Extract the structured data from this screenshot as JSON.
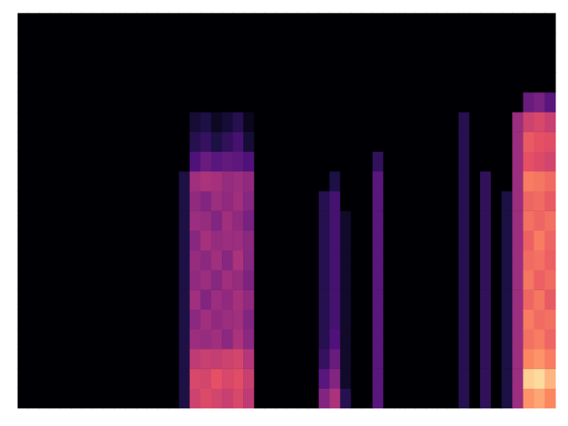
{
  "chart_data": {
    "type": "heatmap",
    "tick_labels": false,
    "zlim": [
      -80,
      0
    ],
    "cells": [
      [
        -80,
        -80,
        -80,
        -80,
        -80,
        -80,
        -80,
        -80,
        -80,
        -80,
        -80,
        -80,
        -80,
        -80,
        -80,
        -80,
        -80,
        -80,
        -80,
        -80
      ],
      [
        -80,
        -80,
        -80,
        -80,
        -80,
        -80,
        -80,
        -80,
        -80,
        -80,
        -80,
        -80,
        -80,
        -80,
        -80,
        -80,
        -80,
        -80,
        -80,
        -80
      ],
      [
        -80,
        -80,
        -80,
        -80,
        -80,
        -80,
        -80,
        -80,
        -80,
        -80,
        -80,
        -80,
        -80,
        -80,
        -80,
        -80,
        -80,
        -80,
        -80,
        -80
      ],
      [
        -80,
        -80,
        -80,
        -80,
        -80,
        -80,
        -80,
        -80,
        -80,
        -80,
        -80,
        -80,
        -80,
        -80,
        -80,
        -80,
        -80,
        -80,
        -80,
        -80
      ],
      [
        -80,
        -80,
        -80,
        -80,
        -80,
        -80,
        -80,
        -80,
        -80,
        -80,
        -80,
        -80,
        -80,
        -80,
        -80,
        -80,
        -80,
        -80,
        -80,
        -80
      ],
      [
        -80,
        -80,
        -80,
        -80,
        -80,
        -80,
        -80,
        -80,
        -80,
        -80,
        -80,
        -80,
        -80,
        -80,
        -80,
        -80,
        -80,
        -80,
        -80,
        -80
      ],
      [
        -80,
        -80,
        -80,
        -80,
        -80,
        -80,
        -80,
        -80,
        -80,
        -80,
        -80,
        -80,
        -80,
        -80,
        -80,
        -80,
        -80,
        -80,
        -80,
        -80
      ],
      [
        -80,
        -80,
        -80,
        -80,
        -80,
        -80,
        -80,
        -80,
        -80,
        -80,
        -80,
        -80,
        -80,
        -80,
        -80,
        -80,
        -80,
        -80,
        -80,
        -80
      ],
      [
        -80,
        -80,
        -80,
        -80,
        -80,
        -80,
        -80,
        -80,
        -80,
        -80,
        -80,
        -80,
        -80,
        -80,
        -80,
        -80,
        -80,
        -80,
        -80,
        -80
      ],
      [
        -80,
        -80,
        -80,
        -80,
        -80,
        -80,
        -80,
        -80,
        -80,
        -80,
        -80,
        -80,
        -80,
        -80,
        -80,
        -80,
        -80,
        -80,
        -80,
        -80
      ],
      [
        -80,
        -80,
        -80,
        -80,
        -80,
        -80,
        -80,
        -80,
        -80,
        -80,
        -80,
        -80,
        -80,
        -80,
        -80,
        -80,
        -80,
        -80,
        -80,
        -80
      ],
      [
        -80,
        -80,
        -80,
        -80,
        -80,
        -80,
        -80,
        -80,
        -80,
        -80,
        -80,
        -80,
        -80,
        -80,
        -80,
        -80,
        -80,
        -80,
        -80,
        -80
      ],
      [
        -80,
        -80,
        -80,
        -80,
        -80,
        -80,
        -80,
        -80,
        -80,
        -80,
        -80,
        -80,
        -80,
        -80,
        -80,
        -80,
        -80,
        -80,
        -80,
        -80
      ],
      [
        -80,
        -80,
        -80,
        -80,
        -80,
        -80,
        -80,
        -80,
        -80,
        -80,
        -80,
        -80,
        -80,
        -80,
        -80,
        -80,
        -80,
        -80,
        -80,
        -80
      ],
      [
        -80,
        -80,
        -80,
        -80,
        -80,
        -80,
        -80,
        -80,
        -80,
        -80,
        -80,
        -80,
        -80,
        -80,
        -80,
        -80,
        -80,
        -80,
        -80,
        -80
      ],
      [
        -70,
        -70,
        -70,
        -70,
        -70,
        -70,
        -70,
        -70,
        -70,
        -70,
        -70,
        -70,
        -80,
        -80,
        -80,
        -80,
        -80,
        -80,
        -80,
        -80
      ],
      [
        -35,
        -33,
        -38,
        -45,
        -48,
        -44,
        -47,
        -46,
        -49,
        -45,
        -47,
        -44,
        -60,
        -68,
        -72,
        -80,
        -80,
        -80,
        -80,
        -80
      ],
      [
        -32,
        -34,
        -36,
        -46,
        -44,
        -50,
        -45,
        -48,
        -43,
        -46,
        -50,
        -42,
        -55,
        -65,
        -70,
        -80,
        -80,
        -80,
        -80,
        -80
      ],
      [
        -34,
        -30,
        -37,
        -44,
        -47,
        -45,
        -49,
        -44,
        -46,
        -50,
        -45,
        -43,
        -58,
        -70,
        -75,
        -80,
        -80,
        -80,
        -80,
        -80
      ],
      [
        -36,
        -33,
        -35,
        -48,
        -45,
        -47,
        -44,
        -49,
        -45,
        -44,
        -47,
        -46,
        -56,
        -66,
        -72,
        -80,
        -80,
        -80,
        -80,
        -80
      ],
      [
        -33,
        -31,
        -34,
        -42,
        -44,
        -43,
        -46,
        -42,
        -45,
        -47,
        -44,
        -45,
        -57,
        -62,
        -68,
        -80,
        -80,
        -80,
        -80,
        -80
      ],
      [
        -38,
        -36,
        -40,
        -48,
        -50,
        -47,
        -51,
        -49,
        -48,
        -52,
        -49,
        -47,
        -60,
        -72,
        -76,
        -80,
        -80,
        -80,
        -80,
        -80
      ],
      [
        -80,
        -80,
        -80,
        -80,
        -80,
        -80,
        -80,
        -80,
        -80,
        -80,
        -80,
        -80,
        -80,
        -80,
        -80,
        -80,
        -80,
        -80,
        -80,
        -80
      ],
      [
        -80,
        -80,
        -80,
        -80,
        -80,
        -80,
        -80,
        -80,
        -80,
        -80,
        -80,
        -80,
        -80,
        -80,
        -80,
        -80,
        -80,
        -80,
        -80,
        -80
      ],
      [
        -80,
        -80,
        -80,
        -80,
        -80,
        -80,
        -80,
        -80,
        -80,
        -80,
        -80,
        -80,
        -80,
        -80,
        -80,
        -80,
        -80,
        -80,
        -80,
        -80
      ],
      [
        -80,
        -80,
        -80,
        -80,
        -80,
        -80,
        -80,
        -80,
        -80,
        -80,
        -80,
        -80,
        -80,
        -80,
        -80,
        -80,
        -80,
        -80,
        -80,
        -80
      ],
      [
        -80,
        -80,
        -80,
        -80,
        -80,
        -80,
        -80,
        -80,
        -80,
        -80,
        -80,
        -80,
        -80,
        -80,
        -80,
        -80,
        -80,
        -80,
        -80,
        -80
      ],
      [
        -80,
        -80,
        -80,
        -80,
        -80,
        -80,
        -80,
        -80,
        -80,
        -80,
        -80,
        -80,
        -80,
        -80,
        -80,
        -80,
        -80,
        -80,
        -80,
        -80
      ],
      [
        -50,
        -58,
        -65,
        -68,
        -68,
        -68,
        -68,
        -68,
        -68,
        -68,
        -68,
        -80,
        -80,
        -80,
        -80,
        -80,
        -80,
        -80,
        -80,
        -80
      ],
      [
        -42,
        -50,
        -55,
        -60,
        -62,
        -62,
        -62,
        -62,
        -62,
        -62,
        -62,
        -70,
        -80,
        -80,
        -80,
        -80,
        -80,
        -80,
        -80,
        -80
      ],
      [
        -68,
        -74,
        -74,
        -74,
        -74,
        -74,
        -74,
        -74,
        -74,
        -74,
        -80,
        -80,
        -80,
        -80,
        -80,
        -80,
        -80,
        -80,
        -80,
        -80
      ],
      [
        -80,
        -80,
        -80,
        -80,
        -80,
        -80,
        -80,
        -80,
        -80,
        -80,
        -80,
        -80,
        -80,
        -80,
        -80,
        -80,
        -80,
        -80,
        -80,
        -80
      ],
      [
        -80,
        -80,
        -80,
        -80,
        -80,
        -80,
        -80,
        -80,
        -80,
        -80,
        -80,
        -80,
        -80,
        -80,
        -80,
        -80,
        -80,
        -80,
        -80,
        -80
      ],
      [
        -58,
        -58,
        -58,
        -58,
        -58,
        -58,
        -58,
        -58,
        -58,
        -58,
        -58,
        -58,
        -66,
        -80,
        -80,
        -80,
        -80,
        -80,
        -80,
        -80
      ],
      [
        -80,
        -80,
        -80,
        -80,
        -80,
        -80,
        -80,
        -80,
        -80,
        -80,
        -80,
        -80,
        -80,
        -80,
        -80,
        -80,
        -80,
        -80,
        -80,
        -80
      ],
      [
        -80,
        -80,
        -80,
        -80,
        -80,
        -80,
        -80,
        -80,
        -80,
        -80,
        -80,
        -80,
        -80,
        -80,
        -80,
        -80,
        -80,
        -80,
        -80,
        -80
      ],
      [
        -80,
        -80,
        -80,
        -80,
        -80,
        -80,
        -80,
        -80,
        -80,
        -80,
        -80,
        -80,
        -80,
        -80,
        -80,
        -80,
        -80,
        -80,
        -80,
        -80
      ],
      [
        -80,
        -80,
        -80,
        -80,
        -80,
        -80,
        -80,
        -80,
        -80,
        -80,
        -80,
        -80,
        -80,
        -80,
        -80,
        -80,
        -80,
        -80,
        -80,
        -80
      ],
      [
        -80,
        -80,
        -80,
        -80,
        -80,
        -80,
        -80,
        -80,
        -80,
        -80,
        -80,
        -80,
        -80,
        -80,
        -80,
        -80,
        -80,
        -80,
        -80,
        -80
      ],
      [
        -80,
        -80,
        -80,
        -80,
        -80,
        -80,
        -80,
        -80,
        -80,
        -80,
        -80,
        -80,
        -80,
        -80,
        -80,
        -80,
        -80,
        -80,
        -80,
        -80
      ],
      [
        -80,
        -80,
        -80,
        -80,
        -80,
        -80,
        -80,
        -80,
        -80,
        -80,
        -80,
        -80,
        -80,
        -80,
        -80,
        -80,
        -80,
        -80,
        -80,
        -80
      ],
      [
        -68,
        -68,
        -68,
        -68,
        -68,
        -68,
        -68,
        -68,
        -68,
        -68,
        -68,
        -68,
        -68,
        -68,
        -68,
        -80,
        -80,
        -80,
        -80,
        -80
      ],
      [
        -80,
        -80,
        -80,
        -80,
        -80,
        -80,
        -80,
        -80,
        -80,
        -80,
        -80,
        -80,
        -80,
        -80,
        -80,
        -80,
        -80,
        -80,
        -80,
        -80
      ],
      [
        -66,
        -66,
        -66,
        -66,
        -66,
        -66,
        -66,
        -66,
        -66,
        -66,
        -66,
        -66,
        -80,
        -80,
        -80,
        -80,
        -80,
        -80,
        -80,
        -80
      ],
      [
        -80,
        -80,
        -80,
        -80,
        -80,
        -80,
        -80,
        -80,
        -80,
        -80,
        -80,
        -80,
        -80,
        -80,
        -80,
        -80,
        -80,
        -80,
        -80,
        -80
      ],
      [
        -70,
        -70,
        -70,
        -70,
        -70,
        -70,
        -70,
        -70,
        -70,
        -70,
        -70,
        -80,
        -80,
        -80,
        -80,
        -80,
        -80,
        -80,
        -80,
        -80
      ],
      [
        -45,
        -45,
        -45,
        -45,
        -45,
        -45,
        -45,
        -45,
        -45,
        -45,
        -45,
        -45,
        -45,
        -45,
        -45,
        -80,
        -80,
        -80,
        -80,
        -80
      ],
      [
        -18,
        -8,
        -20,
        -24,
        -22,
        -26,
        -23,
        -25,
        -27,
        -24,
        -26,
        -22,
        -30,
        -28,
        -35,
        -55,
        -80,
        -80,
        -80,
        -80
      ],
      [
        -15,
        -6,
        -18,
        -22,
        -25,
        -23,
        -27,
        -24,
        -22,
        -26,
        -25,
        -23,
        -32,
        -30,
        -33,
        -52,
        -80,
        -80,
        -80,
        -80
      ],
      [
        -20,
        -12,
        -22,
        -26,
        -24,
        -28,
        -25,
        -27,
        -26,
        -24,
        -28,
        -25,
        -34,
        -31,
        -36,
        -58,
        -80,
        -80,
        -80,
        -80
      ]
    ]
  }
}
